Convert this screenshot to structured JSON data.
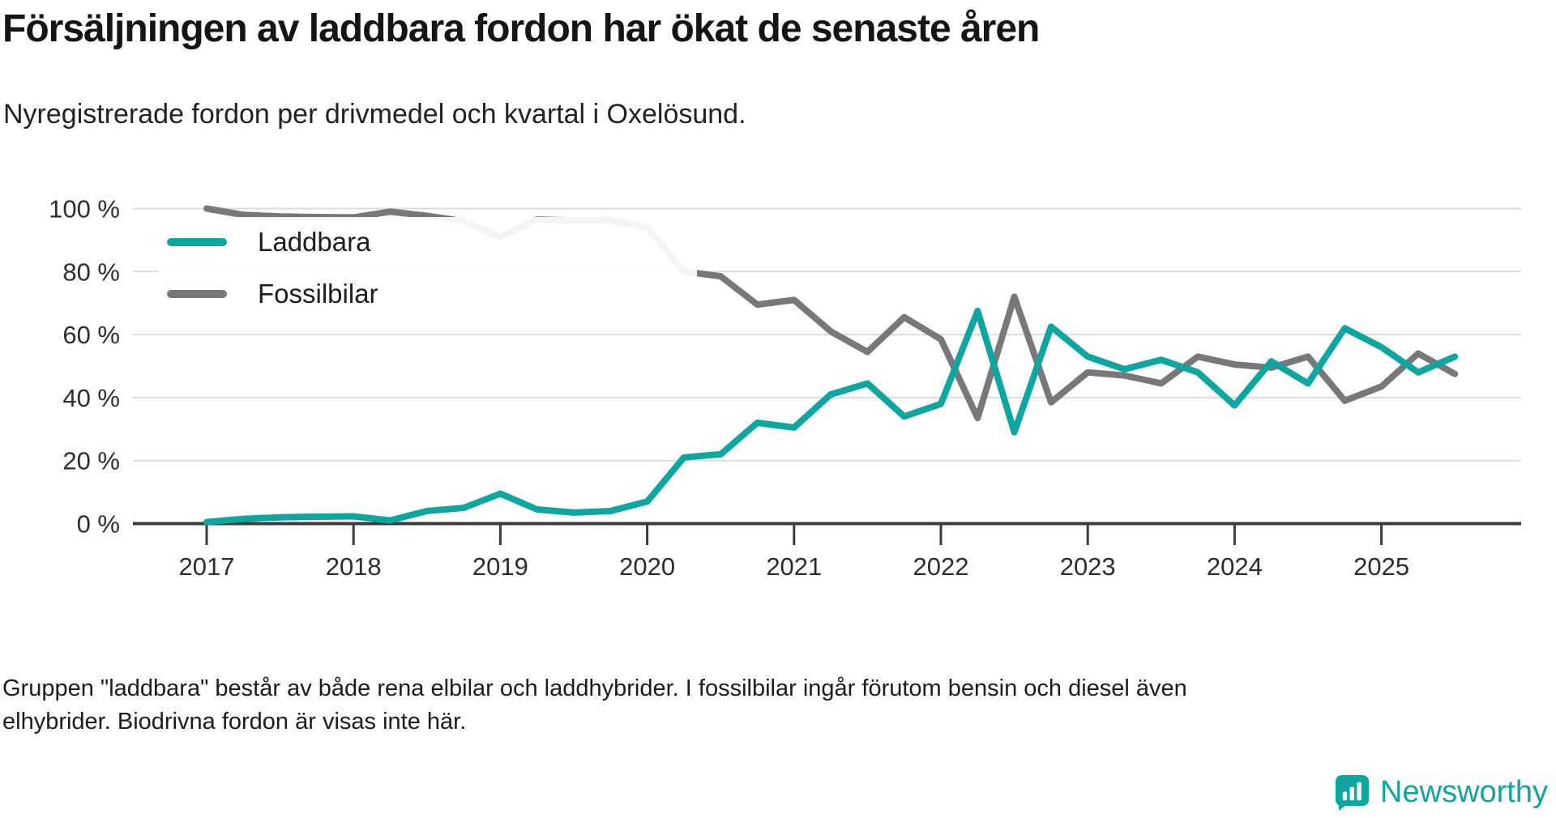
{
  "chart_data": {
    "type": "line",
    "title": "Försäljningen av laddbara fordon har ökat de senaste åren",
    "subtitle": "Nyregistrerade fordon per drivmedel och kvartal i Oxelösund.",
    "caption": "Gruppen \"laddbara\" består av både rena elbilar och laddhybrider. I fossilbilar ingår förutom bensin och diesel även elhybrider. Biodrivna fordon är visas inte här.",
    "x": [
      "2017 Q1",
      "2017 Q2",
      "2017 Q3",
      "2017 Q4",
      "2018 Q1",
      "2018 Q2",
      "2018 Q3",
      "2018 Q4",
      "2019 Q1",
      "2019 Q2",
      "2019 Q3",
      "2019 Q4",
      "2020 Q1",
      "2020 Q2",
      "2020 Q3",
      "2020 Q4",
      "2021 Q1",
      "2021 Q2",
      "2021 Q3",
      "2021 Q4",
      "2022 Q1",
      "2022 Q2",
      "2022 Q3",
      "2022 Q4",
      "2023 Q1",
      "2023 Q2",
      "2023 Q3",
      "2023 Q4",
      "2024 Q1",
      "2024 Q2",
      "2024 Q3",
      "2024 Q4",
      "2025 Q1",
      "2025 Q2",
      "2025 Q3"
    ],
    "x_tick_labels": [
      "2017",
      "2018",
      "2019",
      "2020",
      "2021",
      "2022",
      "2023",
      "2024",
      "2025"
    ],
    "x_tick_indices": [
      0,
      4,
      8,
      12,
      16,
      20,
      24,
      28,
      32
    ],
    "y_tick_values": [
      0,
      20,
      40,
      60,
      80,
      100
    ],
    "y_tick_labels": [
      "0 %",
      "20 %",
      "40 %",
      "60 %",
      "80 %",
      "100 %"
    ],
    "ylim": [
      0,
      100
    ],
    "y_unit": "%",
    "grid": "horizontal",
    "legend_position": "top-left-inside",
    "series": [
      {
        "name": "Laddbara",
        "color": "#0da6a0",
        "values": [
          0.5,
          1.5,
          2,
          2.2,
          2.3,
          1,
          4,
          5,
          9.5,
          4.5,
          3.5,
          4,
          7,
          21,
          22,
          32,
          30.5,
          41,
          44.5,
          34,
          38,
          67.5,
          29,
          62.5,
          53,
          49,
          52,
          48,
          37.5,
          51.5,
          44.5,
          62,
          56,
          48,
          53
        ]
      },
      {
        "name": "Fossilbilar",
        "color": "#78787a",
        "values": [
          100,
          98,
          97.5,
          97.3,
          97.2,
          99,
          97.7,
          96,
          91,
          96.5,
          96.2,
          96.3,
          94,
          80,
          78.5,
          69.5,
          71,
          61,
          54.5,
          65.5,
          58.5,
          33.5,
          72,
          38.5,
          48,
          47,
          44.5,
          53,
          50.5,
          49.5,
          53,
          39,
          43.5,
          54,
          47.5
        ]
      }
    ]
  },
  "branding": {
    "name": "Newsworthy",
    "color": "#0da6a0",
    "icon": "bar-chart-badge-icon"
  }
}
